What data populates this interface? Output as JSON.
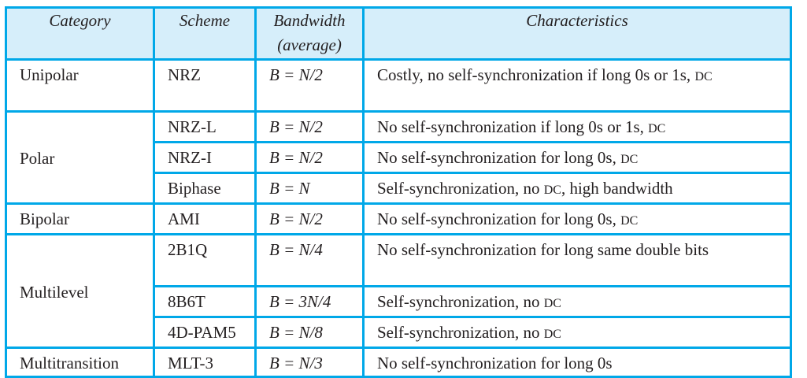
{
  "colors": {
    "border": "#00a8e8",
    "header_bg": "#d6eefa"
  },
  "headers": {
    "category": "Category",
    "scheme": "Scheme",
    "bandwidth": "Bandwidth",
    "bandwidth_sub": "(average)",
    "characteristics": "Characteristics"
  },
  "rows": [
    {
      "category": "Unipolar",
      "scheme": "NRZ",
      "bandwidth": "B = N/2",
      "characteristics": "Costly, no self-synchronization if long 0s or 1s,",
      "dc": "DC"
    },
    {
      "category": "Polar",
      "scheme": "NRZ-L",
      "bandwidth": "B = N/2",
      "characteristics": "No self-synchronization if long 0s or 1s,",
      "dc": "DC"
    },
    {
      "scheme": "NRZ-I",
      "bandwidth": "B = N/2",
      "characteristics": "No self-synchronization for long 0s,",
      "dc": "DC"
    },
    {
      "scheme": "Biphase",
      "bandwidth": "B = N",
      "characteristics": "Self-synchronization, no",
      "dc": "DC",
      "characteristics_tail": ", high bandwidth"
    },
    {
      "category": "Bipolar",
      "scheme": "AMI",
      "bandwidth": "B = N/2",
      "characteristics": "No self-synchronization for long 0s,",
      "dc": "DC"
    },
    {
      "category": "Multilevel",
      "scheme": "2B1Q",
      "bandwidth": "B = N/4",
      "characteristics": "No self-synchronization for long same double bits"
    },
    {
      "scheme": "8B6T",
      "bandwidth": "B = 3N/4",
      "characteristics": "Self-synchronization, no",
      "dc": "DC"
    },
    {
      "scheme": "4D-PAM5",
      "bandwidth": "B = N/8",
      "characteristics": "Self-synchronization, no",
      "dc": "DC"
    },
    {
      "category": "Multitransition",
      "scheme": "MLT-3",
      "bandwidth": "B = N/3",
      "characteristics": "No self-synchronization for long 0s"
    }
  ]
}
